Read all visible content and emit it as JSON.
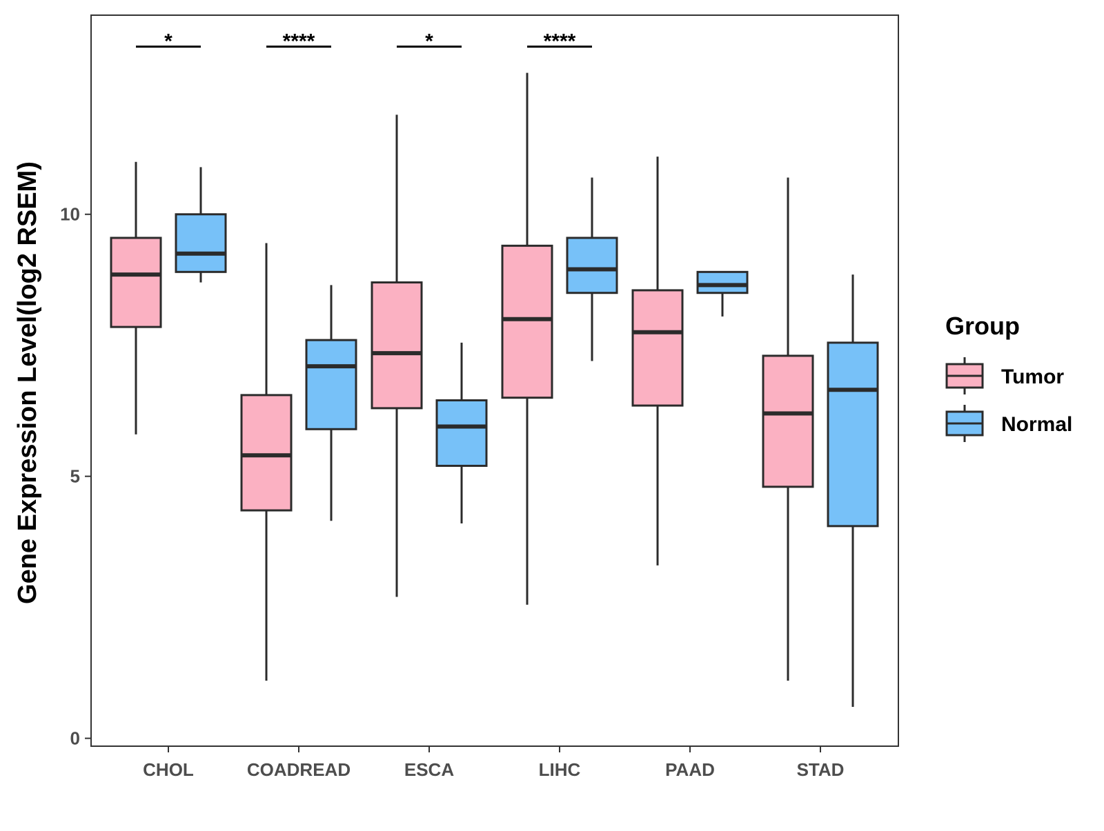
{
  "chart_data": {
    "type": "box",
    "title": "",
    "xlabel": "",
    "ylabel": "Gene Expression Level(log2 RSEM)",
    "ylim": [
      -0.15,
      13.8
    ],
    "yticks": [
      {
        "value": 0,
        "label": "0"
      },
      {
        "value": 5,
        "label": "5"
      },
      {
        "value": 10,
        "label": "10"
      }
    ],
    "grid": false,
    "legend": {
      "title": "Group",
      "position": "right",
      "entries": [
        {
          "name": "Tumor",
          "color": "#FBB1C2"
        },
        {
          "name": "Normal",
          "color": "#77C1F8"
        }
      ]
    },
    "categories": [
      "CHOL",
      "COADREAD",
      "ESCA",
      "LIHC",
      "PAAD",
      "STAD"
    ],
    "series": [
      {
        "name": "Tumor",
        "color": "#FBB1C2",
        "boxes": [
          {
            "min": 5.8,
            "q1": 7.85,
            "median": 8.85,
            "q3": 9.55,
            "max": 11.0
          },
          {
            "min": 1.1,
            "q1": 4.35,
            "median": 5.4,
            "q3": 6.55,
            "max": 9.45
          },
          {
            "min": 2.7,
            "q1": 6.3,
            "median": 7.35,
            "q3": 8.7,
            "max": 11.9
          },
          {
            "min": 2.55,
            "q1": 6.5,
            "median": 8.0,
            "q3": 9.4,
            "max": 12.7
          },
          {
            "min": 3.3,
            "q1": 6.35,
            "median": 7.75,
            "q3": 8.55,
            "max": 11.1
          },
          {
            "min": 1.1,
            "q1": 4.8,
            "median": 6.2,
            "q3": 7.3,
            "max": 10.7
          }
        ]
      },
      {
        "name": "Normal",
        "color": "#77C1F8",
        "boxes": [
          {
            "min": 8.7,
            "q1": 8.9,
            "median": 9.25,
            "q3": 10.0,
            "max": 10.9
          },
          {
            "min": 4.15,
            "q1": 5.9,
            "median": 7.1,
            "q3": 7.6,
            "max": 8.65
          },
          {
            "min": 4.1,
            "q1": 5.2,
            "median": 5.95,
            "q3": 6.45,
            "max": 7.55
          },
          {
            "min": 7.2,
            "q1": 8.5,
            "median": 8.95,
            "q3": 9.55,
            "max": 10.7
          },
          {
            "min": 8.05,
            "q1": 8.5,
            "median": 8.65,
            "q3": 8.9,
            "max": 8.9
          },
          {
            "min": 0.6,
            "q1": 4.05,
            "median": 6.65,
            "q3": 7.55,
            "max": 8.85
          }
        ]
      }
    ],
    "significance": [
      {
        "category": "CHOL",
        "label": "*"
      },
      {
        "category": "COADREAD",
        "label": "****"
      },
      {
        "category": "ESCA",
        "label": "*"
      },
      {
        "category": "LIHC",
        "label": "****"
      }
    ],
    "significance_bar_y": 13.2
  }
}
